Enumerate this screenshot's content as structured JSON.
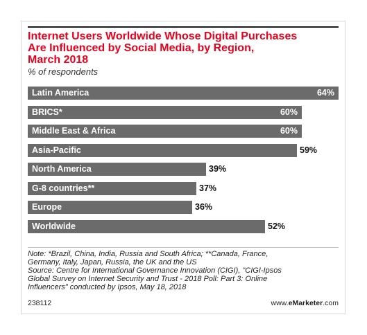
{
  "chart_data": {
    "type": "bar",
    "orientation": "horizontal",
    "title": "Internet Users Worldwide Whose Digital Purchases Are Influenced by Social Media, by Region, March 2018",
    "subtitle": "% of respondents",
    "categories": [
      "Latin America",
      "BRICS*",
      "Middle East & Africa",
      "Asia-Pacific",
      "North America",
      "G-8 countries**",
      "Europe",
      "Worldwide"
    ],
    "values": [
      64,
      60,
      60,
      59,
      39,
      37,
      36,
      52
    ],
    "value_labels": [
      "64%",
      "60%",
      "60%",
      "59%",
      "39%",
      "37%",
      "36%",
      "52%"
    ],
    "xlim": [
      0,
      64
    ],
    "bar_color": "#6b6b6b",
    "grid": false,
    "legend": "none"
  },
  "header": {
    "title_lines": [
      "Internet Users Worldwide Whose Digital Purchases",
      "Are Influenced by Social Media, by Region,",
      "March 2018"
    ],
    "title_color": "#e8001c"
  },
  "notes": {
    "lines": [
      "Note: *Brazil, China, India, Russia and South Africa; **Canada, France,",
      "Germany, Italy, Japan, Russia, the UK and the US",
      "Source: Centre for International Governance Innovation (CIGI), \"CIGI-Ipsos",
      "Global Survey on Internet Security and Trust - 2018 Poll: Part 3: Online",
      "Influencers\" conducted by Ipsos, May 18, 2018"
    ]
  },
  "footer": {
    "chart_id": "238112",
    "brand_prefix": "www.",
    "brand_name": "eMarketer",
    "brand_suffix": ".com"
  }
}
